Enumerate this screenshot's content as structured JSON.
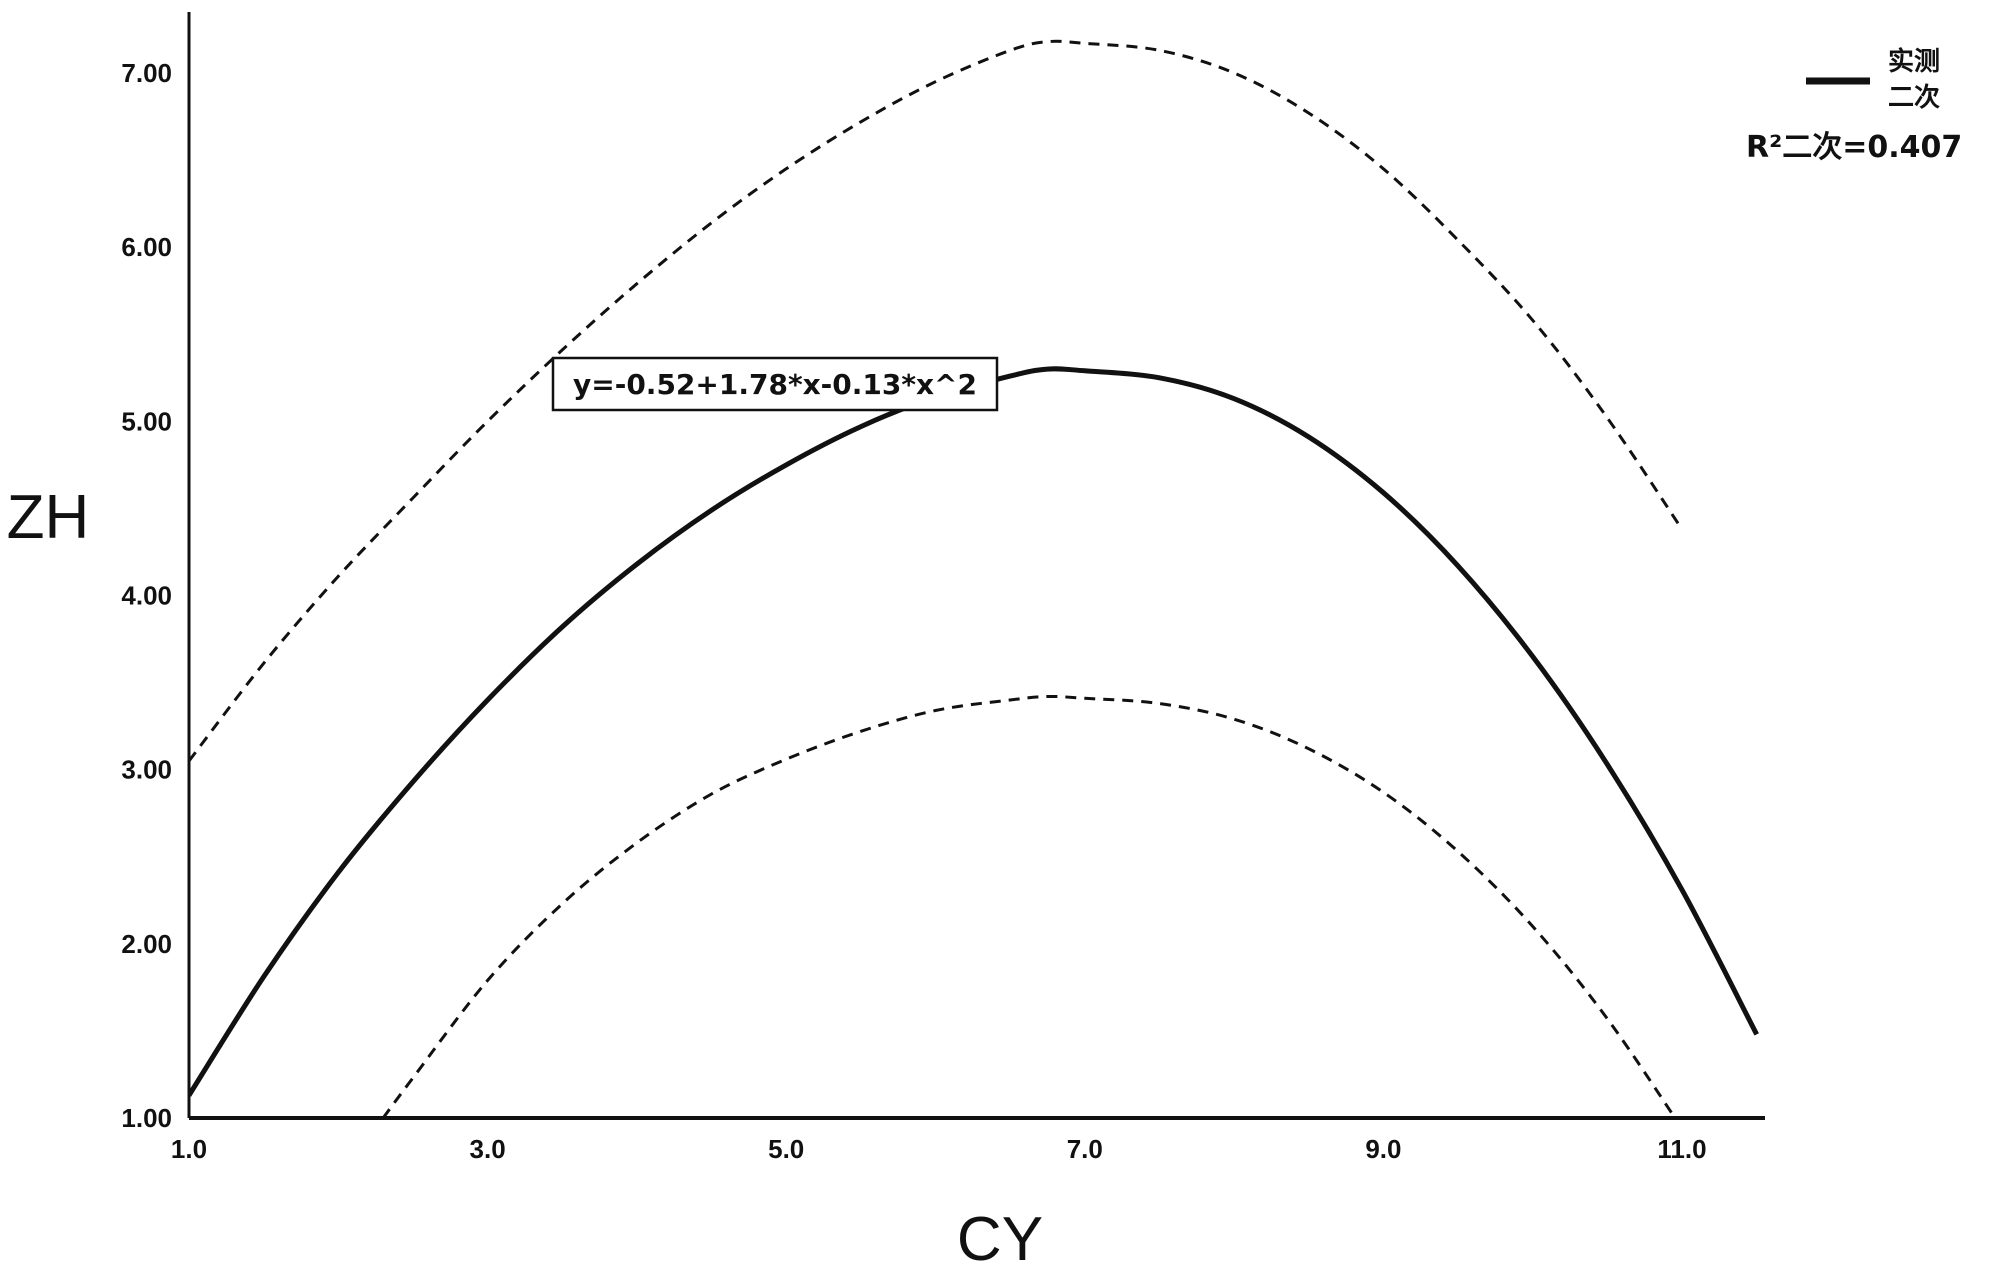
{
  "chart_data": {
    "type": "line",
    "xlabel": "CY",
    "ylabel": "ZH",
    "xlim": [
      1.0,
      11.5
    ],
    "ylim": [
      1.0,
      7.3
    ],
    "x_ticks": [
      "1.0",
      "3.0",
      "5.0",
      "7.0",
      "9.0",
      "11.0"
    ],
    "y_ticks": [
      "1.00",
      "2.00",
      "3.00",
      "4.00",
      "5.00",
      "6.00",
      "7.00"
    ],
    "equation": "y=-0.52+1.78*x-0.13*x^2",
    "r2_label": "R²二次=0.407",
    "legend": {
      "position": "top-right",
      "line_label": "实测",
      "line_label_2": "二次"
    },
    "series": [
      {
        "style": "solid",
        "x": [
          1.0,
          1.5,
          2.0,
          2.5,
          3.0,
          3.5,
          4.0,
          4.5,
          5.0,
          5.5,
          6.0,
          6.5,
          6.75,
          7.0,
          7.5,
          8.0,
          8.5,
          9.0,
          9.5,
          10.0,
          10.5,
          11.0,
          11.5
        ],
        "values": [
          1.13,
          1.81,
          2.41,
          2.93,
          3.4,
          3.82,
          4.18,
          4.49,
          4.75,
          4.97,
          5.14,
          5.26,
          5.3,
          5.29,
          5.25,
          5.13,
          4.91,
          4.59,
          4.17,
          3.65,
          3.03,
          2.31,
          1.48
        ]
      },
      {
        "style": "dashed",
        "x": [
          1.0,
          1.5,
          2.0,
          2.5,
          3.0,
          3.5,
          4.0,
          4.5,
          5.0,
          5.5,
          6.0,
          6.5,
          6.75,
          7.0,
          7.5,
          8.0,
          8.5,
          9.0,
          9.5,
          10.0,
          10.5,
          11.0
        ],
        "values": [
          3.05,
          3.61,
          4.11,
          4.56,
          5.0,
          5.41,
          5.79,
          6.14,
          6.45,
          6.72,
          6.95,
          7.13,
          7.18,
          7.17,
          7.13,
          7.0,
          6.77,
          6.45,
          6.04,
          5.58,
          5.02,
          4.38
        ]
      },
      {
        "style": "dashed",
        "x": [
          2.3,
          2.5,
          3.0,
          3.5,
          4.0,
          4.5,
          5.0,
          5.5,
          6.0,
          6.5,
          6.75,
          7.0,
          7.5,
          8.0,
          8.5,
          9.0,
          9.5,
          10.0,
          10.5,
          11.0
        ],
        "values": [
          1.0,
          1.23,
          1.79,
          2.23,
          2.58,
          2.86,
          3.06,
          3.22,
          3.34,
          3.4,
          3.42,
          3.41,
          3.38,
          3.29,
          3.12,
          2.87,
          2.53,
          2.1,
          1.57,
          0.94
        ]
      }
    ]
  }
}
